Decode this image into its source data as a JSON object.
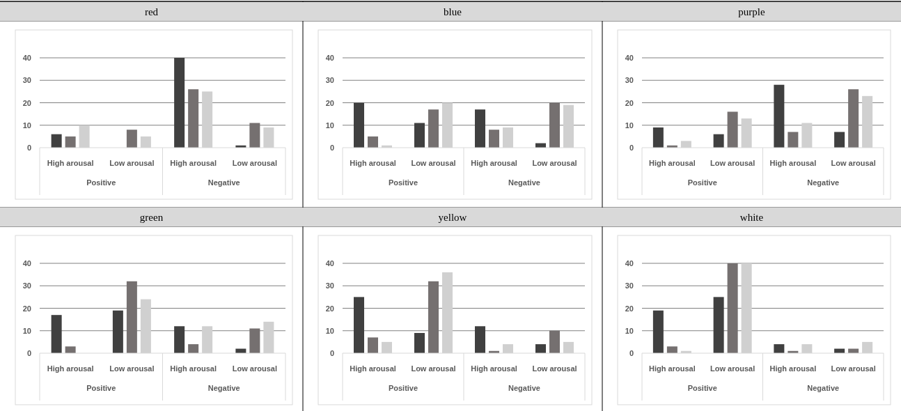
{
  "chart_data": [
    {
      "type": "bar",
      "title": "red",
      "categories": [
        "High arousal",
        "Low arousal",
        "High arousal",
        "Low arousal"
      ],
      "annotations": [
        "Positive",
        "Negative"
      ],
      "ylim": [
        0,
        40
      ],
      "yticks": [
        0,
        10,
        20,
        30,
        40
      ],
      "grid": "y",
      "series": [
        {
          "color": "#404040",
          "values": [
            6,
            0,
            40,
            1
          ]
        },
        {
          "color": "#757070",
          "values": [
            5,
            8,
            26,
            11
          ]
        },
        {
          "color": "#d0d0d0",
          "values": [
            10,
            5,
            25,
            9
          ]
        }
      ]
    },
    {
      "type": "bar",
      "title": "blue",
      "categories": [
        "High arousal",
        "Low arousal",
        "High arousal",
        "Low arousal"
      ],
      "annotations": [
        "Positive",
        "Negative"
      ],
      "ylim": [
        0,
        40
      ],
      "yticks": [
        0,
        10,
        20,
        30,
        40
      ],
      "grid": "y",
      "series": [
        {
          "color": "#404040",
          "values": [
            20,
            11,
            17,
            2
          ]
        },
        {
          "color": "#757070",
          "values": [
            5,
            17,
            8,
            20
          ]
        },
        {
          "color": "#d0d0d0",
          "values": [
            1,
            20,
            9,
            19
          ]
        }
      ]
    },
    {
      "type": "bar",
      "title": "purple",
      "categories": [
        "High arousal",
        "Low arousal",
        "High arousal",
        "Low arousal"
      ],
      "annotations": [
        "Positive",
        "Negative"
      ],
      "ylim": [
        0,
        40
      ],
      "yticks": [
        0,
        10,
        20,
        30,
        40
      ],
      "grid": "y",
      "series": [
        {
          "color": "#404040",
          "values": [
            9,
            6,
            28,
            7
          ]
        },
        {
          "color": "#757070",
          "values": [
            1,
            16,
            7,
            26
          ]
        },
        {
          "color": "#d0d0d0",
          "values": [
            3,
            13,
            11,
            23
          ]
        }
      ]
    },
    {
      "type": "bar",
      "title": "green",
      "categories": [
        "High arousal",
        "Low arousal",
        "High arousal",
        "Low arousal"
      ],
      "annotations": [
        "Positive",
        "Negative"
      ],
      "ylim": [
        0,
        40
      ],
      "yticks": [
        0,
        10,
        20,
        30,
        40
      ],
      "grid": "y",
      "series": [
        {
          "color": "#404040",
          "values": [
            17,
            19,
            12,
            2
          ]
        },
        {
          "color": "#757070",
          "values": [
            3,
            32,
            4,
            11
          ]
        },
        {
          "color": "#d0d0d0",
          "values": [
            0,
            24,
            12,
            14
          ]
        }
      ]
    },
    {
      "type": "bar",
      "title": "yellow",
      "categories": [
        "High arousal",
        "Low arousal",
        "High arousal",
        "Low arousal"
      ],
      "annotations": [
        "Positive",
        "Negative"
      ],
      "ylim": [
        0,
        40
      ],
      "yticks": [
        0,
        10,
        20,
        30,
        40
      ],
      "grid": "y",
      "series": [
        {
          "color": "#404040",
          "values": [
            25,
            9,
            12,
            4
          ]
        },
        {
          "color": "#757070",
          "values": [
            7,
            32,
            1,
            10
          ]
        },
        {
          "color": "#d0d0d0",
          "values": [
            5,
            36,
            4,
            5
          ]
        }
      ]
    },
    {
      "type": "bar",
      "title": "white",
      "categories": [
        "High arousal",
        "Low arousal",
        "High arousal",
        "Low arousal"
      ],
      "annotations": [
        "Positive",
        "Negative"
      ],
      "ylim": [
        0,
        40
      ],
      "yticks": [
        0,
        10,
        20,
        30,
        40
      ],
      "grid": "y",
      "series": [
        {
          "color": "#404040",
          "values": [
            19,
            25,
            4,
            2
          ]
        },
        {
          "color": "#757070",
          "values": [
            3,
            40,
            1,
            2
          ]
        },
        {
          "color": "#d0d0d0",
          "values": [
            1,
            40,
            4,
            5
          ]
        }
      ]
    }
  ]
}
